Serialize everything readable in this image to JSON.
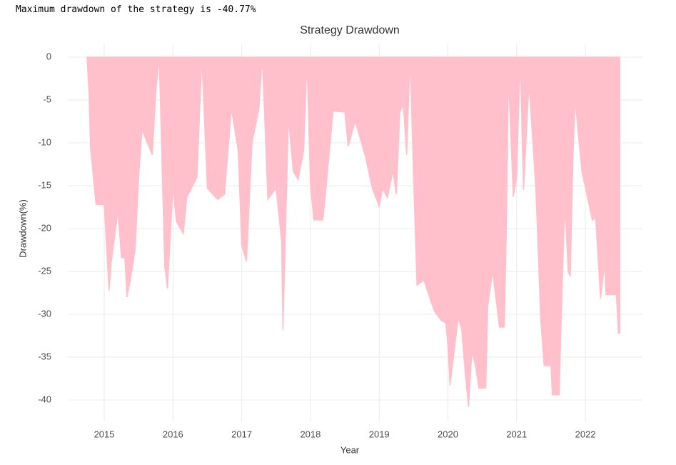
{
  "output_text": "Maximum drawdown of the strategy is -40.77%",
  "chart_data": {
    "type": "area",
    "title": "Strategy Drawdown",
    "x_label": "Year",
    "y_label": "Drawdown(%)",
    "color": "#ffc0cb",
    "grid": true,
    "xlim": [
      2014.47,
      2022.83
    ],
    "xticks": [
      2015,
      2016,
      2017,
      2018,
      2019,
      2020,
      2021,
      2022
    ],
    "ylim": [
      -42.5,
      1.5
    ],
    "yticks": [
      0,
      -5,
      -10,
      -15,
      -20,
      -25,
      -30,
      -35,
      -40
    ],
    "x": [
      2014.75,
      2014.78,
      2014.8,
      2014.88,
      2015.0,
      2015.07,
      2015.1,
      2015.2,
      2015.25,
      2015.3,
      2015.33,
      2015.38,
      2015.45,
      2015.5,
      2015.55,
      2015.7,
      2015.75,
      2015.8,
      2015.88,
      2015.92,
      2016.0,
      2016.05,
      2016.15,
      2016.2,
      2016.35,
      2016.42,
      2016.5,
      2016.65,
      2016.75,
      2016.85,
      2016.95,
      2017.0,
      2017.07,
      2017.15,
      2017.25,
      2017.3,
      2017.38,
      2017.5,
      2017.58,
      2017.6,
      2017.68,
      2017.75,
      2017.82,
      2017.9,
      2017.95,
      2018.0,
      2018.05,
      2018.18,
      2018.2,
      2018.33,
      2018.5,
      2018.55,
      2018.65,
      2018.8,
      2018.9,
      2019.0,
      2019.05,
      2019.12,
      2019.2,
      2019.25,
      2019.3,
      2019.35,
      2019.4,
      2019.45,
      2019.5,
      2019.55,
      2019.65,
      2019.72,
      2019.8,
      2019.9,
      2019.97,
      2020.0,
      2020.03,
      2020.08,
      2020.15,
      2020.2,
      2020.25,
      2020.3,
      2020.35,
      2020.4,
      2020.45,
      2020.55,
      2020.58,
      2020.65,
      2020.7,
      2020.75,
      2020.82,
      2020.85,
      2020.88,
      2020.92,
      2020.95,
      2021.0,
      2021.05,
      2021.1,
      2021.18,
      2021.28,
      2021.35,
      2021.4,
      2021.5,
      2021.52,
      2021.62,
      2021.64,
      2021.7,
      2021.75,
      2021.78,
      2021.82,
      2021.85,
      2021.95,
      2022.0,
      2022.1,
      2022.15,
      2022.22,
      2022.28,
      2022.3,
      2022.45,
      2022.48,
      2022.5
    ],
    "values": [
      0,
      -4.5,
      -10.5,
      -17.2,
      -17.2,
      -27.3,
      -24,
      -18,
      -23.4,
      -23.4,
      -28,
      -26,
      -22.4,
      -14,
      -8.5,
      -11.4,
      -4,
      0,
      -24.4,
      -27,
      -15,
      -19.2,
      -20.6,
      -16.4,
      -14,
      0,
      -15.3,
      -16.6,
      -16,
      -6,
      -11,
      -22,
      -23.8,
      -10,
      -6,
      0,
      -16.6,
      -15.3,
      -21.4,
      -31.8,
      -7,
      -13.3,
      -14.3,
      -11,
      -0.3,
      -15,
      -19,
      -19,
      -17.5,
      -6.3,
      -6.4,
      -10.4,
      -7.4,
      -11.6,
      -15.3,
      -17.4,
      -15.3,
      -16.4,
      -13.3,
      -16,
      -6.5,
      -5.5,
      -11.4,
      0,
      -14,
      -26.6,
      -26,
      -27.7,
      -29.6,
      -30.7,
      -31,
      -33.7,
      -38.3,
      -35,
      -30.4,
      -31.7,
      -36.7,
      -40.77,
      -34.3,
      -36,
      -38.6,
      -38.6,
      -29,
      -25,
      -28.2,
      -31.5,
      -31.5,
      -20,
      -2,
      -10,
      -16.3,
      -14,
      0,
      -15.5,
      -3,
      -15.5,
      -30.6,
      -36,
      -36,
      -39.4,
      -39.4,
      -32.6,
      -17,
      -25,
      -25.6,
      -11.4,
      -5,
      -13.4,
      -15.2,
      -19,
      -18.8,
      -28.2,
      -24,
      -27.7,
      -27.7,
      -32.2,
      -32.2
    ]
  }
}
